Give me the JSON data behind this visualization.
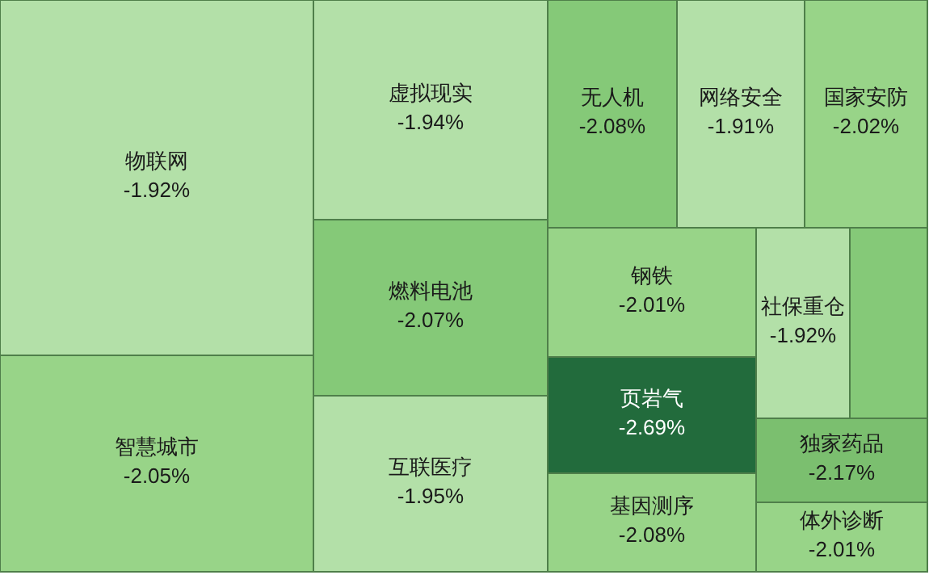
{
  "chart_data": {
    "type": "other",
    "categories": [
      "物联网",
      "智慧城市",
      "虚拟现实",
      "燃料电池",
      "互联医疗",
      "无人机",
      "网络安全",
      "国家安防",
      "钢铁",
      "页岩气",
      "基因测序",
      "社保重仓",
      null,
      "独家药品",
      "体外诊断"
    ],
    "values": [
      -1.92,
      -2.05,
      -1.94,
      -2.07,
      -1.95,
      -2.08,
      -1.91,
      -2.02,
      -2.01,
      -2.69,
      -2.08,
      -1.92,
      null,
      -2.17,
      -2.01
    ],
    "value_labels": [
      "-1.92%",
      "-2.05%",
      "-1.94%",
      "-2.07%",
      "-1.95%",
      "-2.08%",
      "-1.91%",
      "-2.02%",
      "-2.01%",
      "-2.69%",
      "-2.08%",
      "-1.92%",
      null,
      "-2.17%",
      "-2.01%"
    ],
    "colors": [
      "#b3e0a8",
      "#98d488",
      "#b3e0a8",
      "#85c978",
      "#b3e0a8",
      "#85c978",
      "#b3e0a8",
      "#98d488",
      "#98d488",
      "#226b3c",
      "#98d488",
      "#b3e0a8",
      "#85c978",
      "#7bbf6f",
      "#98d488"
    ]
  }
}
